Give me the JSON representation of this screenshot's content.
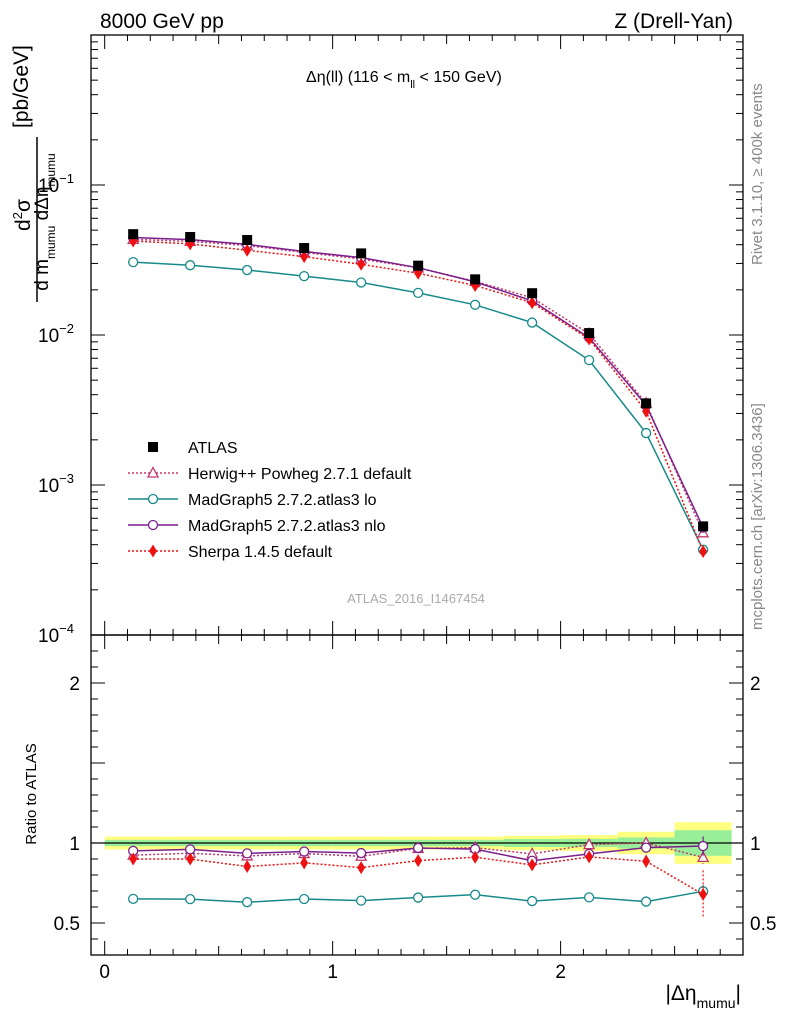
{
  "header": {
    "left": "8000 GeV pp",
    "right": "Z (Drell-Yan)"
  },
  "side": {
    "rivet": "Rivet 3.1.10, ≥ 400k events",
    "mcplots": "mcplots.cern.ch [arXiv:1306.3436]"
  },
  "chart_data": {
    "type": "line",
    "title": "Δη(ll) (116 < m_ll < 150 GeV)",
    "title_main": "Δη(ll) (116 < m",
    "title_sub": "ll",
    "title_tail": " < 150 GeV)",
    "analysis_id": "ATLAS_2016_I1467454",
    "xlabel": "|Δη",
    "xlabel_sub": "mumu",
    "xlabel_tail": "|",
    "ylabel": {
      "d2": "d",
      "d2sup": "2",
      "sigma": "σ",
      "den1": "d m",
      "den1sub": "mumu",
      "den2": " dΔη",
      "den2sub": "mumu",
      "units": "[pb/GeV]"
    },
    "ratio_ylabel": "Ratio to ATLAS",
    "xlim": [
      -0.06,
      2.8
    ],
    "ylim": [
      0.0001,
      1
    ],
    "ratio_ylim": [
      0.3,
      2.3
    ],
    "x_ticks": [
      "0",
      "1",
      "2"
    ],
    "y_ticks": [
      {
        "base": "10",
        "exp": "−1"
      },
      {
        "base": "10",
        "exp": "−2"
      },
      {
        "base": "10",
        "exp": "−3"
      },
      {
        "base": "10",
        "exp": "−4"
      }
    ],
    "ratio_ticks": [
      "2",
      "1",
      "0.5"
    ],
    "x": [
      0.125,
      0.375,
      0.625,
      0.875,
      1.125,
      1.375,
      1.625,
      1.875,
      2.125,
      2.375,
      2.625
    ],
    "bin_edges": [
      0,
      0.25,
      0.5,
      0.75,
      1.0,
      1.25,
      1.5,
      1.75,
      2.0,
      2.25,
      2.5,
      2.75
    ],
    "band_yellow": [
      0.04,
      0.04,
      0.04,
      0.04,
      0.04,
      0.04,
      0.04,
      0.045,
      0.05,
      0.07,
      0.13
    ],
    "band_green": [
      0.02,
      0.02,
      0.02,
      0.02,
      0.02,
      0.02,
      0.02,
      0.025,
      0.025,
      0.035,
      0.08
    ],
    "series": [
      {
        "name": "ATLAS",
        "marker": "square",
        "color": "#000000",
        "dash": "none",
        "values": [
          0.047,
          0.045,
          0.043,
          0.038,
          0.035,
          0.029,
          0.0235,
          0.019,
          0.0103,
          0.0035,
          0.00053
        ],
        "ratio": [
          1,
          1,
          1,
          1,
          1,
          1,
          1,
          1,
          1,
          1,
          1
        ],
        "ratio_err": [
          0,
          0,
          0,
          0,
          0,
          0,
          0,
          0,
          0,
          0,
          0
        ]
      },
      {
        "name": "Herwig++ Powheg 2.7.1 default",
        "marker": "triangle",
        "color": "#c0386e",
        "dash": "2,2",
        "values": [
          0.0434,
          0.0421,
          0.0395,
          0.0355,
          0.0321,
          0.028,
          0.0228,
          0.0177,
          0.0102,
          0.0035,
          0.00048
        ],
        "ratio": [
          0.924,
          0.936,
          0.919,
          0.934,
          0.917,
          0.966,
          0.971,
          0.932,
          0.99,
          1.0,
          0.91
        ],
        "ratio_err": [
          0,
          0,
          0,
          0,
          0,
          0,
          0,
          0,
          0,
          0,
          0.04
        ]
      },
      {
        "name": "MadGraph5 2.7.2.atlas3 lo",
        "marker": "circle",
        "color": "#178a8a",
        "dash": "none",
        "values": [
          0.0306,
          0.0292,
          0.0271,
          0.0247,
          0.0224,
          0.0191,
          0.0159,
          0.0121,
          0.0068,
          0.00222,
          0.00037
        ],
        "ratio": [
          0.651,
          0.649,
          0.63,
          0.65,
          0.64,
          0.659,
          0.677,
          0.637,
          0.66,
          0.634,
          0.698
        ],
        "ratio_err": [
          0,
          0,
          0,
          0,
          0,
          0,
          0,
          0,
          0,
          0,
          0.04
        ]
      },
      {
        "name": "MadGraph5 2.7.2.atlas3 nlo",
        "marker": "circle",
        "color": "#7b1f8c",
        "dash": "none",
        "values": [
          0.0447,
          0.0432,
          0.0402,
          0.036,
          0.0328,
          0.0281,
          0.0226,
          0.0169,
          0.0096,
          0.0034,
          0.00052
        ],
        "ratio": [
          0.951,
          0.96,
          0.935,
          0.947,
          0.937,
          0.969,
          0.962,
          0.889,
          0.932,
          0.971,
          0.981
        ],
        "ratio_err": [
          0,
          0,
          0,
          0,
          0,
          0,
          0,
          0,
          0,
          0,
          0.06
        ]
      },
      {
        "name": "Sherpa 1.4.5 default",
        "marker": "diamond",
        "color": "#ee1111",
        "dash": "2,2",
        "values": [
          0.0423,
          0.0405,
          0.0367,
          0.0333,
          0.0296,
          0.0258,
          0.0214,
          0.0164,
          0.0094,
          0.0031,
          0.00036
        ],
        "ratio": [
          0.9,
          0.9,
          0.853,
          0.876,
          0.846,
          0.89,
          0.911,
          0.863,
          0.913,
          0.886,
          0.679
        ],
        "ratio_err": [
          0.02,
          0.02,
          0.02,
          0.02,
          0.02,
          0.02,
          0.02,
          0.02,
          0.03,
          0.04,
          0.15
        ]
      }
    ]
  }
}
